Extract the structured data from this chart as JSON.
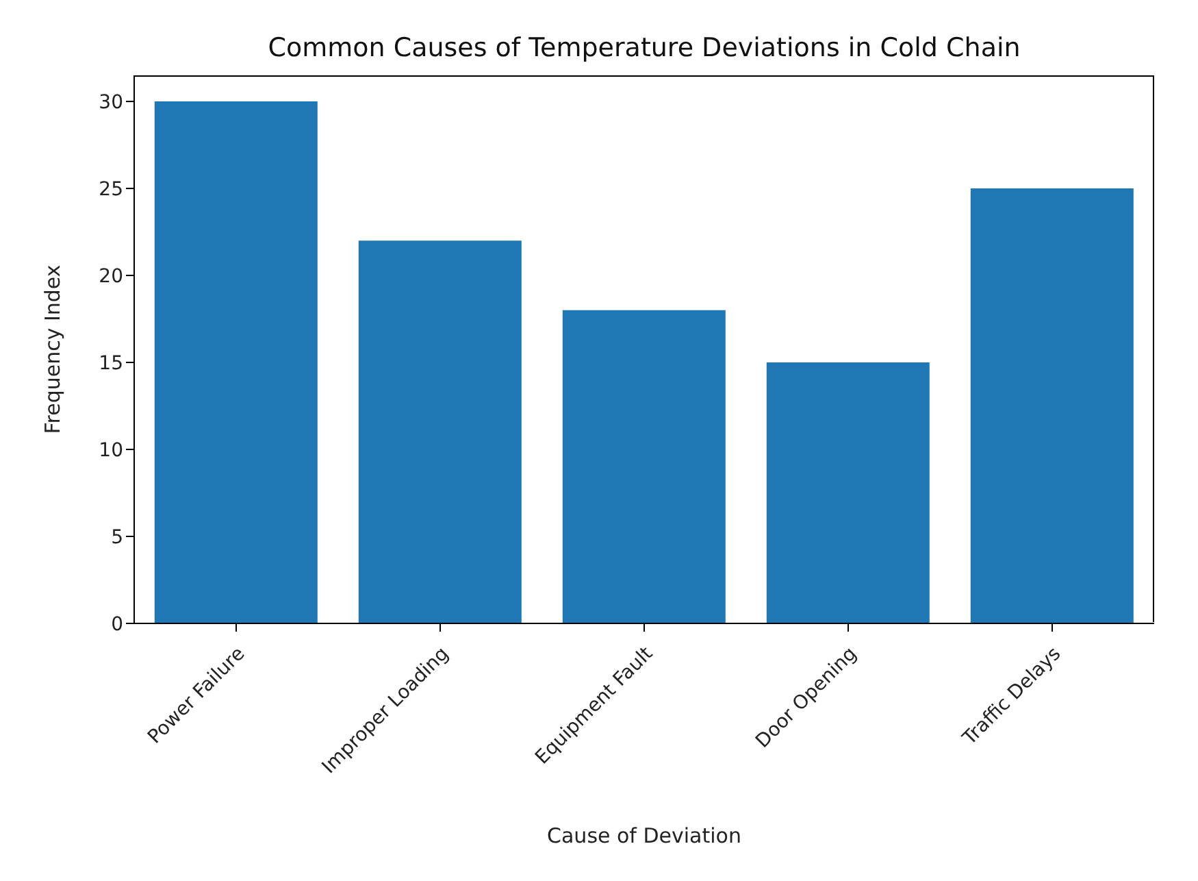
{
  "chart_data": {
    "type": "bar",
    "title": "Common Causes of Temperature Deviations in Cold Chain",
    "xlabel": "Cause of Deviation",
    "ylabel": "Frequency Index",
    "categories": [
      "Power Failure",
      "Improper Loading",
      "Equipment Fault",
      "Door Opening",
      "Traffic Delays"
    ],
    "values": [
      30,
      22,
      18,
      15,
      25
    ],
    "color": "#1f77b4",
    "ylim": [
      0,
      31.5
    ],
    "yticks": [
      0,
      5,
      10,
      15,
      20,
      25,
      30
    ]
  }
}
